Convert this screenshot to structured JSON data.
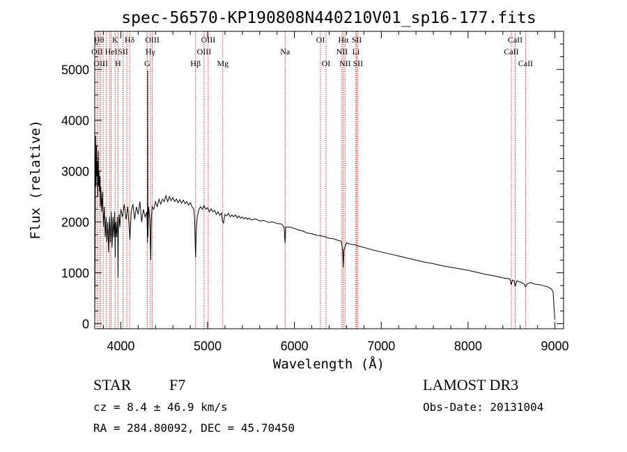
{
  "chart_data": {
    "type": "line",
    "title": "spec-56570-KP190808N440210V01_sp16-177.fits",
    "xlabel": "Wavelength (Å)",
    "ylabel": "Flux (relative)",
    "xlim": [
      3700,
      9100
    ],
    "ylim": [
      -100,
      5750
    ],
    "xticks": [
      4000,
      5000,
      6000,
      7000,
      8000,
      9000
    ],
    "yticks": [
      0,
      1000,
      2000,
      3000,
      4000,
      5000
    ],
    "grid": false,
    "series": [
      {
        "name": "flux",
        "points": [
          [
            3700,
            0
          ],
          [
            3705,
            1600
          ],
          [
            3710,
            3700
          ],
          [
            3715,
            2700
          ],
          [
            3720,
            3500
          ],
          [
            3725,
            2900
          ],
          [
            3730,
            3200
          ],
          [
            3735,
            2500
          ],
          [
            3740,
            3400
          ],
          [
            3745,
            2700
          ],
          [
            3750,
            3000
          ],
          [
            3755,
            2600
          ],
          [
            3760,
            2900
          ],
          [
            3765,
            2300
          ],
          [
            3770,
            2700
          ],
          [
            3780,
            2200
          ],
          [
            3790,
            2600
          ],
          [
            3800,
            1900
          ],
          [
            3810,
            2300
          ],
          [
            3820,
            1700
          ],
          [
            3830,
            2100
          ],
          [
            3840,
            1600
          ],
          [
            3850,
            2000
          ],
          [
            3860,
            1400
          ],
          [
            3870,
            2100
          ],
          [
            3880,
            1600
          ],
          [
            3890,
            2200
          ],
          [
            3900,
            1500
          ],
          [
            3910,
            2100
          ],
          [
            3920,
            1700
          ],
          [
            3930,
            2200
          ],
          [
            3935,
            1300
          ],
          [
            3940,
            2000
          ],
          [
            3950,
            1700
          ],
          [
            3960,
            2100
          ],
          [
            3965,
            1700
          ],
          [
            3968,
            900
          ],
          [
            3972,
            1800
          ],
          [
            3980,
            2150
          ],
          [
            3990,
            1900
          ],
          [
            4000,
            2250
          ],
          [
            4020,
            2100
          ],
          [
            4040,
            2350
          ],
          [
            4060,
            2050
          ],
          [
            4080,
            2300
          ],
          [
            4100,
            1800
          ],
          [
            4105,
            1650
          ],
          [
            4120,
            2200
          ],
          [
            4140,
            2350
          ],
          [
            4160,
            2050
          ],
          [
            4180,
            2300
          ],
          [
            4200,
            2150
          ],
          [
            4220,
            2400
          ],
          [
            4240,
            2000
          ],
          [
            4260,
            2250
          ],
          [
            4280,
            2100
          ],
          [
            4300,
            2200
          ],
          [
            4308,
            1600
          ],
          [
            4310,
            4980
          ],
          [
            4312,
            1700
          ],
          [
            4320,
            2300
          ],
          [
            4335,
            2050
          ],
          [
            4340,
            1550
          ],
          [
            4345,
            1250
          ],
          [
            4350,
            1950
          ],
          [
            4360,
            2300
          ],
          [
            4380,
            2250
          ],
          [
            4400,
            2400
          ],
          [
            4420,
            2300
          ],
          [
            4440,
            2450
          ],
          [
            4460,
            2350
          ],
          [
            4480,
            2450
          ],
          [
            4500,
            2400
          ],
          [
            4520,
            2520
          ],
          [
            4540,
            2400
          ],
          [
            4560,
            2500
          ],
          [
            4580,
            2420
          ],
          [
            4600,
            2480
          ],
          [
            4620,
            2400
          ],
          [
            4640,
            2450
          ],
          [
            4660,
            2380
          ],
          [
            4680,
            2440
          ],
          [
            4700,
            2370
          ],
          [
            4720,
            2430
          ],
          [
            4740,
            2360
          ],
          [
            4760,
            2400
          ],
          [
            4780,
            2330
          ],
          [
            4800,
            2380
          ],
          [
            4820,
            2300
          ],
          [
            4840,
            2250
          ],
          [
            4850,
            2050
          ],
          [
            4858,
            1500
          ],
          [
            4862,
            1300
          ],
          [
            4868,
            1800
          ],
          [
            4880,
            2100
          ],
          [
            4900,
            2250
          ],
          [
            4920,
            2300
          ],
          [
            4940,
            2250
          ],
          [
            4960,
            2320
          ],
          [
            4980,
            2250
          ],
          [
            5000,
            2280
          ],
          [
            5020,
            2200
          ],
          [
            5040,
            2260
          ],
          [
            5060,
            2200
          ],
          [
            5080,
            2230
          ],
          [
            5100,
            2150
          ],
          [
            5120,
            2200
          ],
          [
            5140,
            2130
          ],
          [
            5160,
            2180
          ],
          [
            5170,
            2020
          ],
          [
            5183,
            1980
          ],
          [
            5200,
            2150
          ],
          [
            5220,
            2120
          ],
          [
            5240,
            2170
          ],
          [
            5260,
            2100
          ],
          [
            5280,
            2140
          ],
          [
            5300,
            2100
          ],
          [
            5320,
            2140
          ],
          [
            5340,
            2080
          ],
          [
            5360,
            2120
          ],
          [
            5380,
            2070
          ],
          [
            5400,
            2100
          ],
          [
            5420,
            2060
          ],
          [
            5440,
            2090
          ],
          [
            5460,
            2050
          ],
          [
            5480,
            2080
          ],
          [
            5500,
            2040
          ],
          [
            5550,
            2060
          ],
          [
            5600,
            2020
          ],
          [
            5650,
            2030
          ],
          [
            5700,
            1990
          ],
          [
            5750,
            2000
          ],
          [
            5800,
            1970
          ],
          [
            5850,
            1960
          ],
          [
            5880,
            1900
          ],
          [
            5893,
            1580
          ],
          [
            5900,
            1900
          ],
          [
            5950,
            1900
          ],
          [
            6000,
            1870
          ],
          [
            6050,
            1840
          ],
          [
            6100,
            1820
          ],
          [
            6150,
            1780
          ],
          [
            6200,
            1770
          ],
          [
            6250,
            1740
          ],
          [
            6300,
            1730
          ],
          [
            6350,
            1710
          ],
          [
            6400,
            1680
          ],
          [
            6450,
            1670
          ],
          [
            6500,
            1640
          ],
          [
            6540,
            1620
          ],
          [
            6555,
            1450
          ],
          [
            6563,
            1100
          ],
          [
            6570,
            1450
          ],
          [
            6600,
            1590
          ],
          [
            6650,
            1560
          ],
          [
            6700,
            1550
          ],
          [
            6750,
            1520
          ],
          [
            6800,
            1500
          ],
          [
            6900,
            1450
          ],
          [
            7000,
            1410
          ],
          [
            7100,
            1370
          ],
          [
            7200,
            1330
          ],
          [
            7300,
            1290
          ],
          [
            7400,
            1250
          ],
          [
            7500,
            1210
          ],
          [
            7600,
            1180
          ],
          [
            7700,
            1140
          ],
          [
            7800,
            1110
          ],
          [
            7900,
            1080
          ],
          [
            8000,
            1050
          ],
          [
            8100,
            1010
          ],
          [
            8200,
            970
          ],
          [
            8300,
            940
          ],
          [
            8400,
            900
          ],
          [
            8480,
            880
          ],
          [
            8498,
            760
          ],
          [
            8510,
            860
          ],
          [
            8530,
            840
          ],
          [
            8542,
            730
          ],
          [
            8560,
            840
          ],
          [
            8600,
            820
          ],
          [
            8640,
            790
          ],
          [
            8662,
            720
          ],
          [
            8680,
            780
          ],
          [
            8720,
            810
          ],
          [
            8760,
            780
          ],
          [
            8800,
            770
          ],
          [
            8840,
            760
          ],
          [
            8880,
            740
          ],
          [
            8920,
            720
          ],
          [
            8960,
            680
          ],
          [
            8980,
            620
          ],
          [
            8990,
            300
          ],
          [
            9000,
            80
          ]
        ]
      }
    ],
    "lines": [
      {
        "wl": 3727,
        "row": 1,
        "label": "OII"
      },
      {
        "wl": 3750,
        "row": 0,
        "label": "Hθ"
      },
      {
        "wl": 3770,
        "row": 2,
        "label": "OIII"
      },
      {
        "wl": 3797,
        "row": 0,
        "label": ""
      },
      {
        "wl": 3835,
        "row": 0,
        "label": ""
      },
      {
        "wl": 3869,
        "row": 0,
        "label": ""
      },
      {
        "wl": 3889,
        "row": 1,
        "label": "HeI"
      },
      {
        "wl": 3934,
        "row": 0,
        "label": "K"
      },
      {
        "wl": 3968,
        "row": 2,
        "label": "H"
      },
      {
        "wl": 4026,
        "row": 1,
        "label": "SII"
      },
      {
        "wl": 4070,
        "row": 0,
        "label": ""
      },
      {
        "wl": 4102,
        "row": 0,
        "label": "Hδ"
      },
      {
        "wl": 4304,
        "row": 2,
        "label": "G"
      },
      {
        "wl": 4341,
        "row": 1,
        "label": "Hγ"
      },
      {
        "wl": 4363,
        "row": 0,
        "label": "OIII"
      },
      {
        "wl": 4861,
        "row": 2,
        "label": "Hβ"
      },
      {
        "wl": 4959,
        "row": 1,
        "label": "OIII"
      },
      {
        "wl": 5007,
        "row": 0,
        "label": "OIII"
      },
      {
        "wl": 5175,
        "row": 2,
        "label": "Mg"
      },
      {
        "wl": 5893,
        "row": 1,
        "label": "Na"
      },
      {
        "wl": 6300,
        "row": 0,
        "label": "OI"
      },
      {
        "wl": 6363,
        "row": 2,
        "label": "OI"
      },
      {
        "wl": 6548,
        "row": 1,
        "label": "NII"
      },
      {
        "wl": 6563,
        "row": 0,
        "label": "Hα"
      },
      {
        "wl": 6583,
        "row": 2,
        "label": "NII"
      },
      {
        "wl": 6708,
        "row": 1,
        "label": "Li"
      },
      {
        "wl": 6716,
        "row": 0,
        "label": "SII"
      },
      {
        "wl": 6731,
        "row": 2,
        "label": "SII"
      },
      {
        "wl": 8498,
        "row": 1,
        "label": "CaII"
      },
      {
        "wl": 8542,
        "row": 0,
        "label": "CaII"
      },
      {
        "wl": 8662,
        "row": 2,
        "label": "CaII"
      }
    ],
    "line_color": "#cc0000",
    "spectrum_color": "#000000"
  },
  "info": {
    "class": "STAR",
    "subclass": "F7",
    "survey": "LAMOST DR3",
    "cz": "cz = 8.4 ± 46.9 km/s",
    "obs_date": "Obs-Date: 20131004",
    "coords": "RA = 284.80092, DEC =  45.70450"
  }
}
